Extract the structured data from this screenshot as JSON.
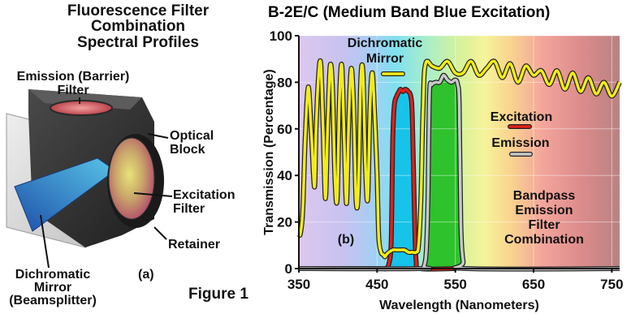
{
  "figure": {
    "left_title_lines": [
      "Fluorescence Filter",
      "Combination",
      "Spectral Profiles"
    ],
    "panel_a_label": "(a)",
    "figure_label": "Figure 1",
    "callouts": {
      "emission_filter": [
        "Emission (Barrier)",
        "Filter"
      ],
      "optical_block": [
        "Optical",
        "Block"
      ],
      "excitation_filter": [
        "Excitation",
        "Filter"
      ],
      "retainer": [
        "Retainer"
      ],
      "dichromatic_mirror": [
        "Dichromatic",
        "Mirror",
        "(Beamsplitter)"
      ]
    }
  },
  "chart_data": {
    "type": "line",
    "title": "B-2E/C (Medium Band Blue Excitation)",
    "xlabel": "Wavelength (Nanometers)",
    "ylabel": "Transmission (Percentage)",
    "xlim": [
      350,
      760
    ],
    "ylim": [
      0,
      100
    ],
    "xticks": [
      350,
      450,
      550,
      650,
      750
    ],
    "yticks": [
      0,
      20,
      40,
      60,
      80,
      100
    ],
    "panel_label": "(b)",
    "annotations": {
      "mirror_label": [
        "Dichromatic",
        "Mirror"
      ],
      "excitation_label": "Excitation",
      "emission_label": "Emission",
      "bandpass_label": [
        "Bandpass",
        "Emission",
        "Filter",
        "Combination"
      ]
    },
    "colors": {
      "dichromatic_mirror": "#f2ec18",
      "excitation": "#e0201b",
      "emission": "#c8c8c8",
      "excitation_fill": "#17c3e9",
      "emission_fill": "#2ec22c"
    },
    "series": [
      {
        "name": "Dichromatic Mirror",
        "x": [
          350,
          352,
          355,
          358,
          362,
          366,
          370,
          372,
          375,
          378,
          381,
          384,
          387,
          390,
          393,
          396,
          399,
          402,
          405,
          408,
          411,
          414,
          417,
          420,
          423,
          426,
          429,
          432,
          435,
          438,
          441,
          444,
          447,
          450,
          452,
          455,
          458,
          460,
          462,
          465,
          470,
          475,
          480,
          485,
          490,
          495,
          500,
          503,
          506,
          508,
          510,
          512,
          515,
          520,
          530,
          540,
          550,
          560,
          570,
          580,
          590,
          600,
          610,
          620,
          630,
          640,
          650,
          660,
          670,
          680,
          690,
          700,
          710,
          720,
          730,
          740,
          750,
          760
        ],
        "y": [
          15,
          15,
          25,
          55,
          78,
          58,
          35,
          60,
          82,
          88,
          60,
          30,
          62,
          87,
          78,
          40,
          30,
          74,
          87,
          55,
          28,
          66,
          86,
          70,
          30,
          33,
          80,
          84,
          45,
          30,
          70,
          84,
          65,
          40,
          14,
          7,
          6,
          5,
          6,
          7,
          8,
          8,
          8,
          8,
          7,
          7,
          7,
          10,
          30,
          60,
          82,
          88,
          89,
          87,
          86,
          89,
          84,
          84,
          89,
          83,
          86,
          89,
          82,
          88,
          80,
          87,
          83,
          85,
          79,
          85,
          77,
          84,
          76,
          82,
          75,
          80,
          74,
          80
        ]
      },
      {
        "name": "Excitation",
        "x": [
          350,
          450,
          460,
          465,
          468,
          470,
          472,
          475,
          478,
          480,
          483,
          486,
          490,
          493,
          495,
          498,
          500,
          505,
          550
        ],
        "y": [
          0,
          0,
          0,
          2,
          12,
          55,
          70,
          74,
          76,
          77,
          76,
          77,
          76,
          74,
          65,
          20,
          3,
          0,
          0
        ]
      },
      {
        "name": "Emission",
        "x": [
          350,
          505,
          510,
          513,
          515,
          517,
          520,
          525,
          530,
          535,
          540,
          545,
          550,
          553,
          555,
          557,
          560,
          565,
          760
        ],
        "y": [
          0,
          0,
          1,
          8,
          30,
          75,
          79,
          80,
          80,
          83,
          81,
          80,
          81,
          79,
          70,
          20,
          3,
          0,
          0
        ]
      }
    ]
  }
}
